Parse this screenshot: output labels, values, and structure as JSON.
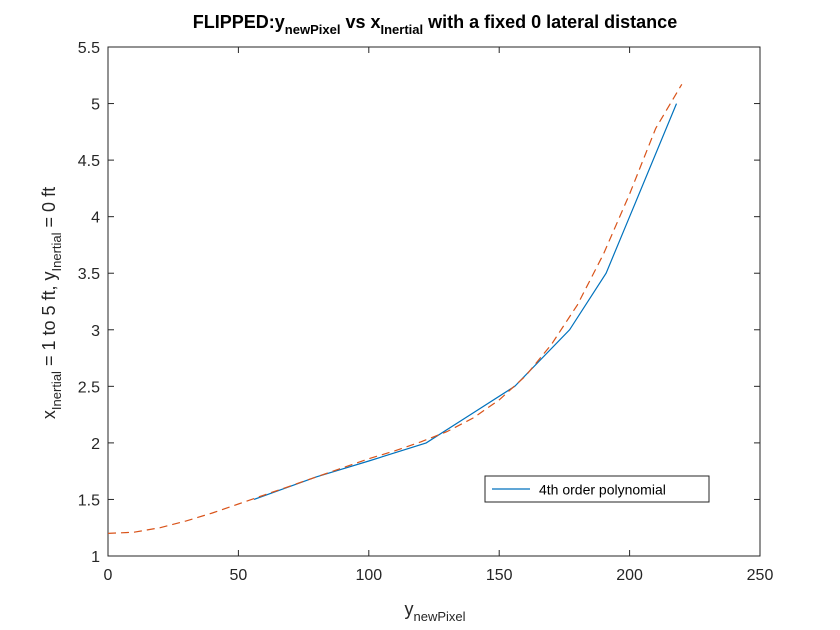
{
  "chart_data": {
    "type": "line",
    "title": {
      "prefix": "FLIPPED:y",
      "sub1": "newPixel",
      "mid": " vs x",
      "sub2": "Inertial",
      "suffix": " with a fixed 0 lateral distance"
    },
    "xlabel": {
      "main": "y",
      "sub": "newPixel"
    },
    "ylabel": {
      "p1": "x",
      "s1": "Inertial",
      "p2": " = 1 to 5 ft, y",
      "s2": "Inertial",
      "p3": " = 0 ft"
    },
    "xlim": [
      0,
      250
    ],
    "ylim": [
      1,
      5.5
    ],
    "xticks": [
      0,
      50,
      100,
      150,
      200,
      250
    ],
    "yticks": [
      1,
      1.5,
      2,
      2.5,
      3,
      3.5,
      4,
      4.5,
      5,
      5.5
    ],
    "xtick_labels": [
      "0",
      "50",
      "100",
      "150",
      "200",
      "250"
    ],
    "ytick_labels": [
      "1",
      "1.5",
      "2",
      "2.5",
      "3",
      "3.5",
      "4",
      "4.5",
      "5",
      "5.5"
    ],
    "grid": false,
    "legend_position": "lower-right inside",
    "legend_entries": [
      "4th order polynomial"
    ],
    "series": [
      {
        "name": "4th order polynomial",
        "style": "solid",
        "color": "#0072bd",
        "x": [
          56,
          80,
          100,
          122,
          139,
          156,
          177,
          191,
          200,
          218
        ],
        "y": [
          1.5,
          1.7,
          1.84,
          2.0,
          2.25,
          2.5,
          3.0,
          3.5,
          4.0,
          5.0
        ]
      },
      {
        "name": "",
        "style": "dashed",
        "color": "#d95319",
        "x": [
          0,
          10,
          20,
          30,
          40,
          50,
          60,
          70,
          80,
          90,
          100,
          110,
          120,
          130,
          140,
          150,
          160,
          170,
          180,
          190,
          200,
          210,
          220
        ],
        "y": [
          1.2,
          1.21,
          1.25,
          1.31,
          1.38,
          1.46,
          1.54,
          1.62,
          1.7,
          1.78,
          1.86,
          1.93,
          2.01,
          2.1,
          2.22,
          2.38,
          2.59,
          2.87,
          3.22,
          3.67,
          4.2,
          4.78,
          5.17
        ]
      }
    ]
  }
}
